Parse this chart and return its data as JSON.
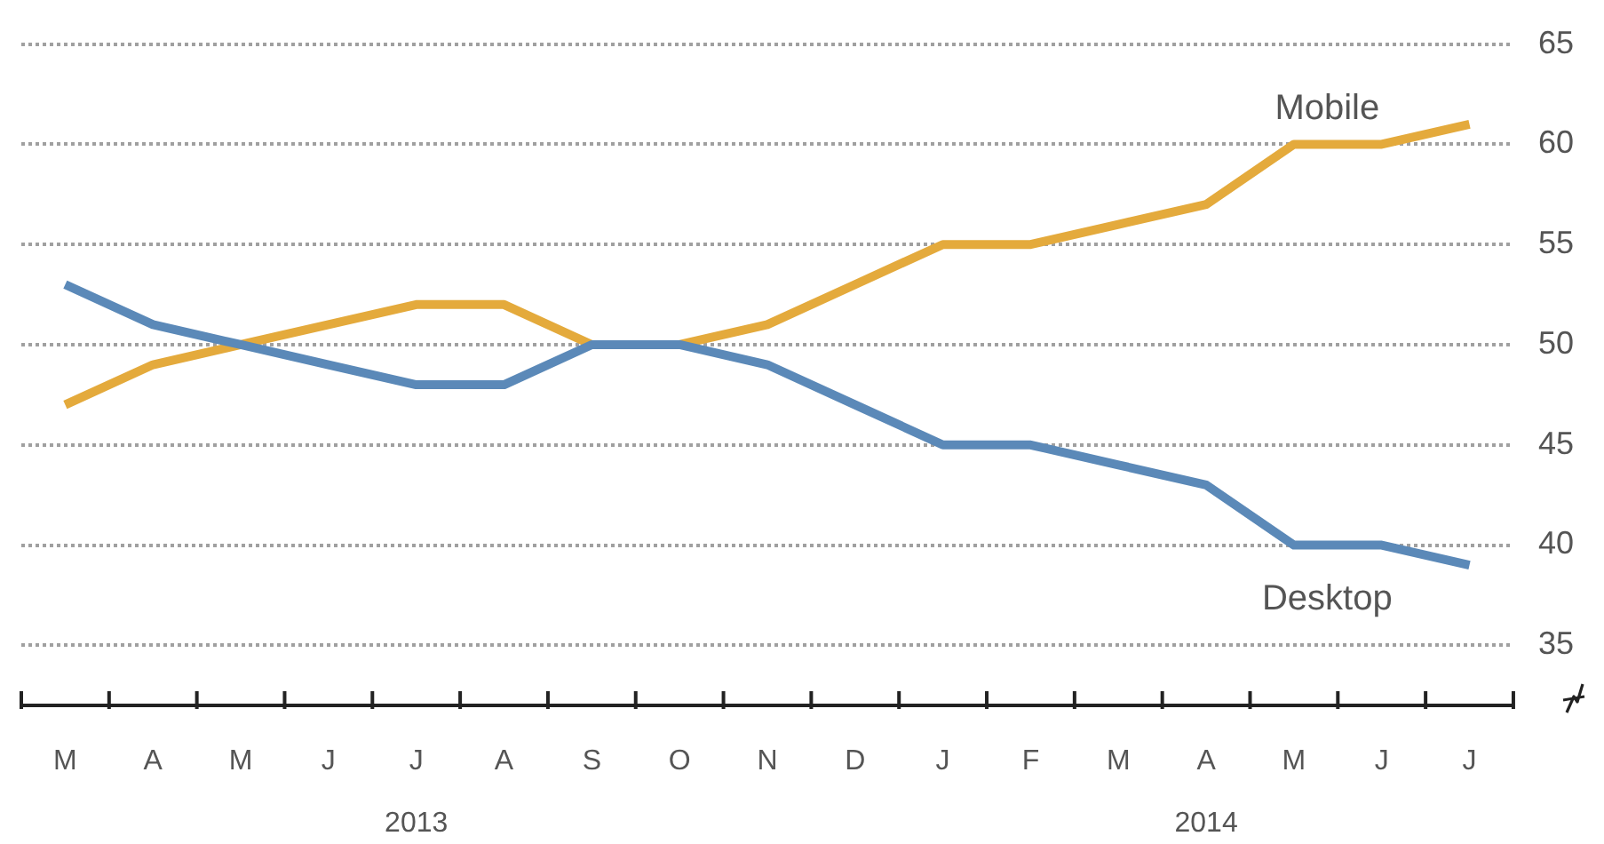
{
  "chart_data": {
    "type": "line",
    "categories": [
      "M",
      "A",
      "M",
      "J",
      "J\n2013",
      "A",
      "S",
      "O",
      "N",
      "D",
      "J",
      "F",
      "M",
      "A\n2014",
      "M",
      "J",
      "J"
    ],
    "series": [
      {
        "name": "Desktop",
        "color": "#5b89b8",
        "values": [
          53,
          51,
          50,
          49,
          48,
          48,
          50,
          50,
          49,
          47,
          45,
          45,
          44,
          43,
          40,
          40,
          39
        ]
      },
      {
        "name": "Mobile",
        "color": "#e4aa3c",
        "values": [
          47,
          49,
          50,
          51,
          52,
          52,
          50,
          50,
          51,
          53,
          55,
          55,
          56,
          57,
          60,
          60,
          61
        ]
      }
    ],
    "ylim": [
      32,
      65
    ],
    "yticks": [
      35,
      40,
      45,
      50,
      55,
      60,
      65
    ],
    "grid": "y"
  }
}
